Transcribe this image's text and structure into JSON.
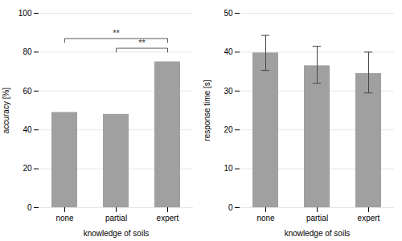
{
  "chart_data": [
    {
      "type": "bar",
      "categories": [
        "none",
        "partial",
        "expert"
      ],
      "values": [
        49,
        48,
        75
      ],
      "color": "#a0a0a0",
      "xlabel": "knowledge of soils",
      "ylabel": "accuracy [%]",
      "ylim": [
        0,
        100
      ],
      "yticks": [
        0,
        20,
        40,
        60,
        80,
        100
      ],
      "grid": true,
      "annotations": [
        {
          "x1": "none",
          "x2": "expert",
          "y": 87,
          "label": "**"
        },
        {
          "x1": "partial",
          "x2": "expert",
          "y": 82,
          "label": "**"
        }
      ]
    },
    {
      "type": "bar",
      "categories": [
        "none",
        "partial",
        "expert"
      ],
      "values": [
        39.8,
        36.5,
        34.5
      ],
      "errors_upper": [
        4.5,
        5.0,
        5.5
      ],
      "errors_lower": [
        4.5,
        4.5,
        5.0
      ],
      "color": "#a0a0a0",
      "xlabel": "knowledge of soils",
      "ylabel": "response time [s]",
      "ylim": [
        0,
        50
      ],
      "yticks": [
        0,
        10,
        20,
        30,
        40,
        50
      ],
      "grid": true
    }
  ]
}
